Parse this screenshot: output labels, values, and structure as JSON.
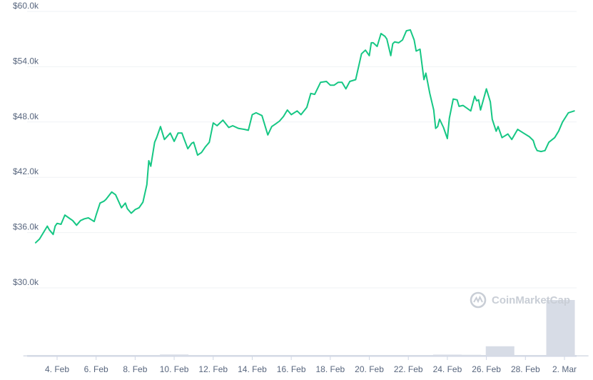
{
  "watermark": {
    "text": "CoinMarketCap",
    "icon": "coinmarketcap-logo-icon"
  },
  "colors": {
    "line": "#16c784",
    "grid": "#eff2f5",
    "volume": "#d7dce6",
    "tick": "#58667e",
    "watermark": "#c9ced6"
  },
  "chart_data": {
    "type": "line",
    "title": "",
    "xlabel": "",
    "ylabel": "",
    "ylim": [
      30000,
      60000
    ],
    "y_ticks": [
      30000,
      36000,
      42000,
      48000,
      54000,
      60000
    ],
    "y_tick_labels": [
      "$30.0k",
      "$36.0k",
      "$42.0k",
      "$48.0k",
      "$54.0k",
      "$60.0k"
    ],
    "x_ticks": [
      4,
      6,
      8,
      10,
      12,
      14,
      16,
      18,
      20,
      22,
      24,
      26,
      28,
      30
    ],
    "x_tick_labels": [
      "4. Feb",
      "6. Feb",
      "8. Feb",
      "10. Feb",
      "12. Feb",
      "14. Feb",
      "16. Feb",
      "18. Feb",
      "20. Feb",
      "22. Feb",
      "24. Feb",
      "26. Feb",
      "28. Feb",
      "2. Mar"
    ],
    "grid": true,
    "legend": "none",
    "series": [
      {
        "x": [
          2.9,
          3.1,
          3.5,
          3.6,
          3.8,
          3.9,
          4.0,
          4.2,
          4.4,
          4.6,
          4.8,
          5.0,
          5.2,
          5.4,
          5.6,
          5.9,
          6.0,
          6.2,
          6.4,
          6.5,
          6.8,
          7.0,
          7.3,
          7.5,
          7.6,
          7.8,
          8.0,
          8.2,
          8.4,
          8.6,
          8.7,
          8.8,
          9.0,
          9.1,
          9.3,
          9.5,
          9.8,
          10.0,
          10.2,
          10.4,
          10.5,
          10.7,
          10.9,
          11.0,
          11.2,
          11.4,
          11.6,
          11.8,
          12.0,
          12.2,
          12.5,
          12.8,
          13.0,
          13.3,
          13.6,
          13.8,
          14.0,
          14.2,
          14.5,
          14.8,
          15.0,
          15.2,
          15.4,
          15.6,
          15.8,
          16.0,
          16.3,
          16.5,
          16.8,
          17.0,
          17.2,
          17.5,
          17.8,
          18.0,
          18.2,
          18.4,
          18.6,
          18.8,
          19.0,
          19.3,
          19.6,
          19.8,
          20.0,
          20.1,
          20.2,
          20.4,
          20.6,
          20.8,
          20.9,
          21.1,
          21.2,
          21.3,
          21.5,
          21.7,
          21.9,
          22.1,
          22.3,
          22.4,
          22.6,
          22.8,
          22.9,
          23.1,
          23.3,
          23.4,
          23.5,
          23.6,
          23.8,
          24.0,
          24.1,
          24.3,
          24.5,
          24.6,
          24.8,
          25.0,
          25.2,
          25.4,
          25.5,
          25.6,
          25.7,
          26.0,
          26.2,
          26.3,
          26.5,
          26.6,
          26.8,
          27.1,
          27.3,
          27.6,
          27.9,
          28.2,
          28.4,
          28.5,
          28.6,
          28.8,
          29.0,
          29.2,
          29.5,
          29.7,
          29.9,
          30.2,
          30.5
        ],
        "y": [
          34900,
          35300,
          36700,
          36300,
          35800,
          36700,
          37000,
          36900,
          37900,
          37600,
          37300,
          36800,
          37300,
          37500,
          37600,
          37200,
          37900,
          39200,
          39400,
          39600,
          40400,
          40100,
          38700,
          39200,
          38600,
          38100,
          38500,
          38700,
          39300,
          41200,
          43800,
          43200,
          45800,
          46300,
          47500,
          46100,
          46800,
          45900,
          46800,
          46800,
          46200,
          45100,
          45700,
          45800,
          44400,
          44700,
          45300,
          45800,
          47900,
          47600,
          48200,
          47400,
          47600,
          47300,
          47200,
          47100,
          48800,
          49000,
          48700,
          46600,
          47500,
          47800,
          48100,
          48600,
          49300,
          48800,
          49200,
          48800,
          49600,
          51100,
          51000,
          52300,
          52400,
          52000,
          52000,
          52300,
          52300,
          51600,
          52400,
          52600,
          55400,
          55800,
          55200,
          56600,
          56600,
          56200,
          57600,
          57300,
          57000,
          55200,
          56500,
          56700,
          56600,
          56900,
          57900,
          58000,
          56900,
          55700,
          55900,
          52600,
          53300,
          51100,
          49300,
          47300,
          47500,
          48300,
          47400,
          46200,
          48400,
          50500,
          50400,
          49700,
          49800,
          49500,
          49200,
          50800,
          50300,
          50400,
          49300,
          51600,
          50200,
          48300,
          47000,
          47500,
          46300,
          46700,
          46100,
          47200,
          46800,
          46400,
          46000,
          45300,
          44900,
          44800,
          44900,
          45800,
          46300,
          47000,
          48000,
          49000,
          49200
        ]
      }
    ],
    "volume_x": [
      3.0,
      4.0,
      5.0,
      6.0,
      7.0,
      8.0,
      9.0,
      10.0,
      11.0,
      12.0,
      13.0,
      14.0,
      15.0,
      16.0,
      17.0,
      18.0,
      19.0,
      20.0,
      21.0,
      22.0,
      23.0,
      24.0,
      25.0,
      26.0,
      26.7,
      26.85,
      27.0,
      28.0,
      29.0,
      29.8,
      30.5
    ],
    "volume": [
      0.45,
      0.48,
      0.47,
      0.48,
      0.48,
      0.48,
      0.55,
      0.85,
      0.62,
      0.55,
      0.5,
      0.5,
      0.5,
      0.5,
      0.55,
      0.55,
      0.5,
      0.5,
      0.45,
      0.4,
      0.45,
      0.8,
      0.72,
      0.6,
      4.5,
      1.7,
      0.45,
      0.4,
      0.45,
      25.0,
      0.5
    ]
  }
}
